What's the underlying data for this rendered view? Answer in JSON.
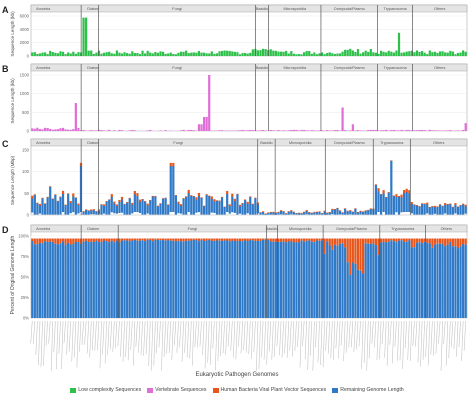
{
  "colors": {
    "green": "#2ec04a",
    "pink": "#df6fd6",
    "orange": "#e8561c",
    "blue": "#2f79c6",
    "strip": "#e4e4e4",
    "grid": "#e9e9e9",
    "divider": "#555555"
  },
  "legend": {
    "items": [
      {
        "label": "Low complexity Sequences",
        "color": "#2ec04a"
      },
      {
        "label": "Vertebrate Sequences",
        "color": "#df6fd6"
      },
      {
        "label": "Human Bacteria Viral Plant Vector Sequences",
        "color": "#e8561c"
      },
      {
        "label": "Remaining Genome Length",
        "color": "#2f79c6"
      }
    ]
  },
  "x_axis_title": "Eukaryotic Pathogen Genomes",
  "chart_data": [
    {
      "panel": "A",
      "type": "bar",
      "ylabel": "Sequence Length (kb)",
      "ylim": [
        0,
        6000
      ],
      "yticks": [
        0,
        2000,
        4000,
        6000
      ],
      "series": [
        {
          "name": "Low complexity Sequences",
          "color": "#2ec04a"
        }
      ],
      "facets": [
        "Amoeba",
        "Diatom",
        "Fungi",
        "Basidio",
        "Microsporidia",
        "Oomycota/Plasmo",
        "Trypanosoma",
        "Others"
      ],
      "peaks": [
        {
          "group": "Diatom",
          "value": 5900
        },
        {
          "group": "Trypanosoma",
          "value": 3500
        }
      ]
    },
    {
      "panel": "B",
      "type": "bar",
      "ylabel": "Sequence Length (kb)",
      "ylim": [
        0,
        1500
      ],
      "yticks": [
        0,
        500,
        1000,
        1500
      ],
      "series": [
        {
          "name": "Vertebrate Sequences",
          "color": "#df6fd6"
        }
      ],
      "facets": [
        "Amoeba",
        "Diatom",
        "Fungi",
        "Basidio",
        "Microsporidia",
        "Oomycota/Plasmo",
        "Trypanosoma",
        "Others"
      ],
      "peaks": [
        {
          "group": "Amoeba",
          "value": 760
        },
        {
          "group": "Fungi",
          "value": 1600
        },
        {
          "group": "Oomycota/Plasmo",
          "value": 620
        }
      ]
    },
    {
      "panel": "C",
      "type": "bar",
      "ylabel": "Sequence Length (Mbp)",
      "ylim": [
        0,
        150
      ],
      "yticks": [
        0,
        50,
        100,
        150
      ],
      "series": [
        {
          "name": "Remaining Genome Length",
          "color": "#2f79c6"
        },
        {
          "name": "Human Bacteria Viral Plant Vector Sequences",
          "color": "#e8561c"
        }
      ],
      "facets": [
        "Amoeba",
        "Diatom",
        "Fungi",
        "Basidio",
        "Microsporidia",
        "Oomycota/Plasmo",
        "Trypanosoma",
        "Others"
      ]
    },
    {
      "panel": "D",
      "type": "bar",
      "ylabel": "Percent of Original Genome Length",
      "ylim": [
        0,
        100
      ],
      "yticks": [
        "0%",
        "25%",
        "50%",
        "75%",
        "100%"
      ],
      "series": [
        {
          "name": "Remaining Genome Length",
          "color": "#2f79c6"
        },
        {
          "name": "Human Bacteria Viral Plant Vector Sequences",
          "color": "#e8561c"
        }
      ],
      "facets": [
        "Amoeba",
        "Diatom",
        "Fungi",
        "Basidio",
        "Microsporidia",
        "Oomycota/Plasmo",
        "Trypanosoma",
        "Others"
      ]
    }
  ]
}
